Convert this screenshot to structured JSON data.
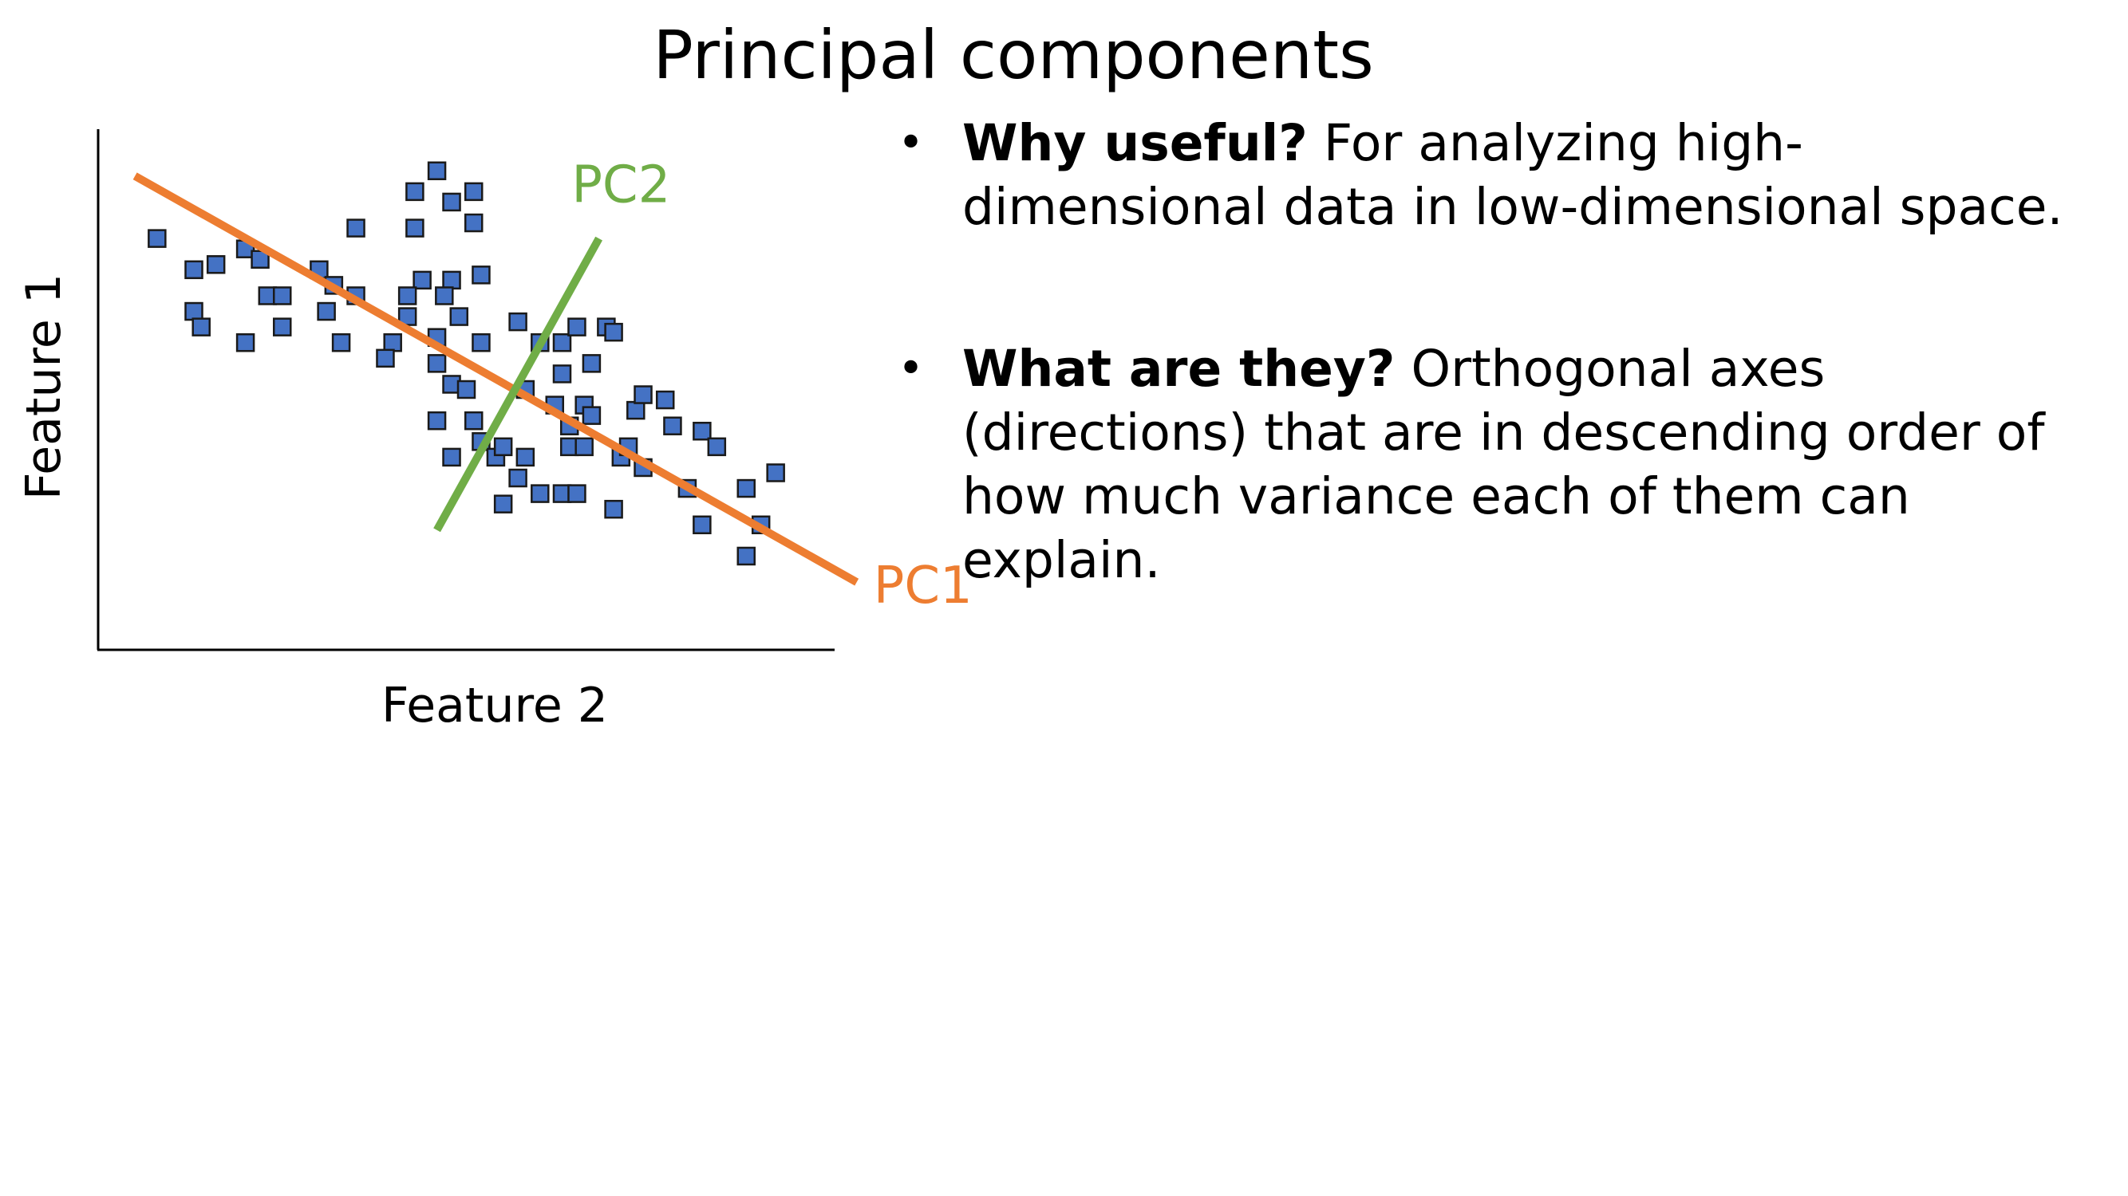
{
  "title": "Principal components",
  "figure": {
    "x_axis_label": "Feature 2",
    "y_axis_label": "Feature 1",
    "pc1_label": "PC1",
    "pc2_label": "PC2",
    "colors": {
      "points_fill": "#4472C4",
      "points_stroke": "#1a1a1a",
      "pc1": "#ED7D31",
      "pc2": "#70AD47",
      "axes": "#000000"
    },
    "points": [
      [
        0.08,
        0.79
      ],
      [
        0.13,
        0.73
      ],
      [
        0.16,
        0.74
      ],
      [
        0.13,
        0.65
      ],
      [
        0.14,
        0.62
      ],
      [
        0.2,
        0.77
      ],
      [
        0.22,
        0.75
      ],
      [
        0.23,
        0.68
      ],
      [
        0.25,
        0.68
      ],
      [
        0.25,
        0.62
      ],
      [
        0.2,
        0.59
      ],
      [
        0.3,
        0.73
      ],
      [
        0.35,
        0.81
      ],
      [
        0.32,
        0.7
      ],
      [
        0.35,
        0.68
      ],
      [
        0.31,
        0.65
      ],
      [
        0.33,
        0.59
      ],
      [
        0.43,
        0.88
      ],
      [
        0.43,
        0.81
      ],
      [
        0.46,
        0.92
      ],
      [
        0.48,
        0.86
      ],
      [
        0.51,
        0.82
      ],
      [
        0.51,
        0.88
      ],
      [
        0.44,
        0.71
      ],
      [
        0.42,
        0.68
      ],
      [
        0.42,
        0.64
      ],
      [
        0.4,
        0.59
      ],
      [
        0.39,
        0.56
      ],
      [
        0.48,
        0.71
      ],
      [
        0.47,
        0.68
      ],
      [
        0.49,
        0.64
      ],
      [
        0.52,
        0.72
      ],
      [
        0.46,
        0.6
      ],
      [
        0.48,
        0.51
      ],
      [
        0.52,
        0.59
      ],
      [
        0.46,
        0.55
      ],
      [
        0.5,
        0.5
      ],
      [
        0.46,
        0.44
      ],
      [
        0.51,
        0.44
      ],
      [
        0.52,
        0.4
      ],
      [
        0.48,
        0.37
      ],
      [
        0.54,
        0.37
      ],
      [
        0.55,
        0.39
      ],
      [
        0.57,
        0.63
      ],
      [
        0.58,
        0.5
      ],
      [
        0.58,
        0.37
      ],
      [
        0.57,
        0.33
      ],
      [
        0.6,
        0.59
      ],
      [
        0.62,
        0.47
      ],
      [
        0.64,
        0.43
      ],
      [
        0.64,
        0.39
      ],
      [
        0.63,
        0.59
      ],
      [
        0.63,
        0.53
      ],
      [
        0.65,
        0.62
      ],
      [
        0.67,
        0.55
      ],
      [
        0.66,
        0.47
      ],
      [
        0.67,
        0.45
      ],
      [
        0.69,
        0.62
      ],
      [
        0.7,
        0.61
      ],
      [
        0.66,
        0.39
      ],
      [
        0.71,
        0.37
      ],
      [
        0.72,
        0.39
      ],
      [
        0.74,
        0.35
      ],
      [
        0.55,
        0.28
      ],
      [
        0.6,
        0.3
      ],
      [
        0.63,
        0.3
      ],
      [
        0.65,
        0.3
      ],
      [
        0.7,
        0.27
      ],
      [
        0.73,
        0.46
      ],
      [
        0.74,
        0.49
      ],
      [
        0.77,
        0.48
      ],
      [
        0.78,
        0.43
      ],
      [
        0.82,
        0.42
      ],
      [
        0.84,
        0.39
      ],
      [
        0.8,
        0.31
      ],
      [
        0.82,
        0.24
      ],
      [
        0.88,
        0.31
      ],
      [
        0.92,
        0.34
      ],
      [
        0.9,
        0.24
      ],
      [
        0.88,
        0.18
      ]
    ],
    "pc1_line": [
      [
        0.05,
        0.91
      ],
      [
        1.03,
        0.13
      ]
    ],
    "pc2_line": [
      [
        0.46,
        0.23
      ],
      [
        0.68,
        0.79
      ]
    ],
    "pc1_label_pos": [
      1.12,
      0.09
    ],
    "pc2_label_pos": [
      0.71,
      0.86
    ]
  },
  "bullets": [
    {
      "head": "Why useful?",
      "text": " For analyzing high-dimensional data in low-dimensional space."
    },
    {
      "head": "What are they?",
      "text": " Orthogonal axes (directions) that are in descending order of how much variance each of them can explain."
    }
  ]
}
